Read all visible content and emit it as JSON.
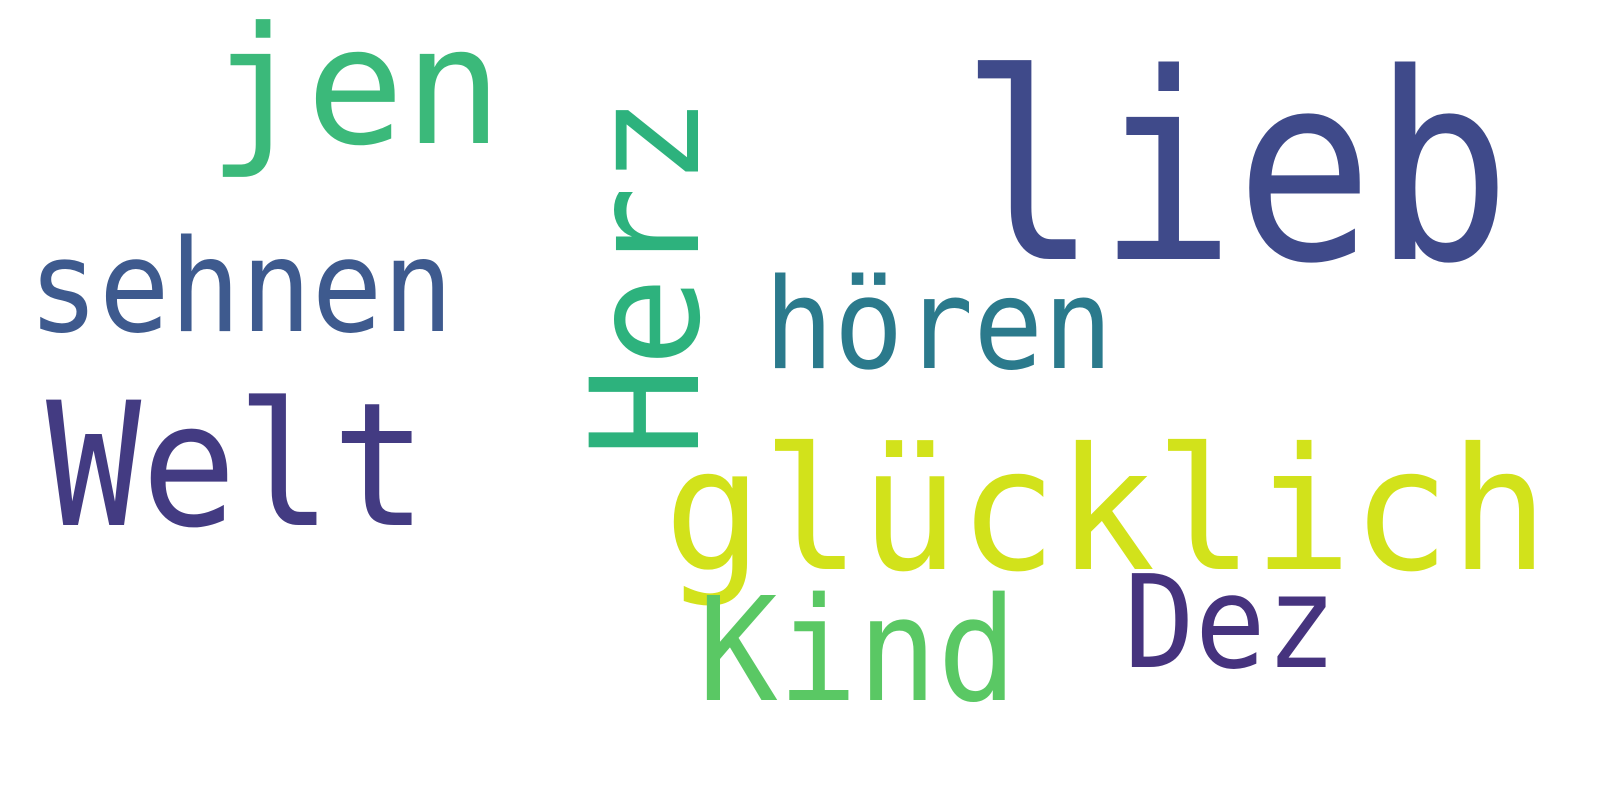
{
  "words": [
    {
      "text": "lieb",
      "color": "#3f4a8a"
    },
    {
      "text": "jen",
      "color": "#3bb97a"
    },
    {
      "text": "Herz",
      "color": "#2db27d"
    },
    {
      "text": "sehnen",
      "color": "#3e5a8e"
    },
    {
      "text": "hören",
      "color": "#2b7a8c"
    },
    {
      "text": "Welt",
      "color": "#433b82"
    },
    {
      "text": "glücklich",
      "color": "#d2e21b"
    },
    {
      "text": "Kind",
      "color": "#5ac864"
    },
    {
      "text": "Dez",
      "color": "#46337e"
    }
  ]
}
